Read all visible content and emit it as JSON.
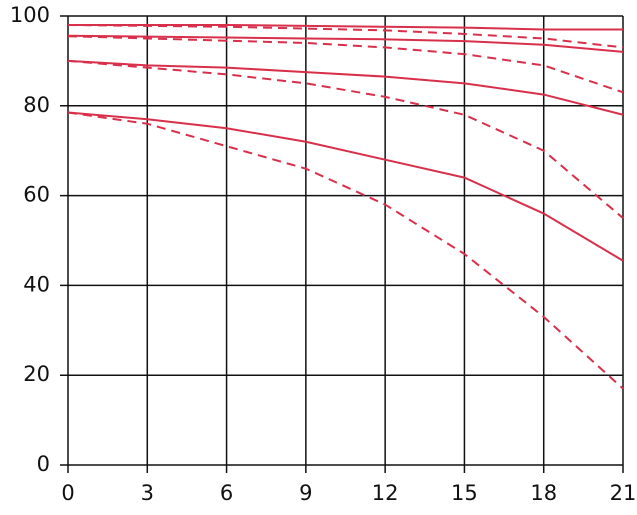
{
  "chart_data": {
    "type": "line",
    "x": [
      0,
      3,
      6,
      9,
      12,
      15,
      18,
      21
    ],
    "series": [
      {
        "color": "#d8304a",
        "style": "solid",
        "values": [
          98,
          98,
          98,
          97.8,
          97.6,
          97.4,
          97,
          97
        ]
      },
      {
        "color": "#d8304a",
        "style": "dashed",
        "values": [
          98,
          97.8,
          97.6,
          97.2,
          96.8,
          96,
          95,
          93
        ]
      },
      {
        "color": "#d8304a",
        "style": "solid",
        "values": [
          95.6,
          95.4,
          95.2,
          95,
          94.8,
          94.4,
          93.6,
          92
        ]
      },
      {
        "color": "#d8304a",
        "style": "dashed",
        "values": [
          95.5,
          95,
          94.5,
          94,
          93,
          91.5,
          89,
          83
        ]
      },
      {
        "color": "#d8304a",
        "style": "solid",
        "values": [
          90,
          89,
          88.5,
          87.5,
          86.5,
          85,
          82.5,
          78
        ]
      },
      {
        "color": "#d8304a",
        "style": "dashed",
        "values": [
          90,
          88.5,
          87,
          85,
          82,
          78,
          70,
          55
        ]
      },
      {
        "color": "#d8304a",
        "style": "solid",
        "values": [
          78.5,
          77,
          75,
          72,
          68,
          64,
          56,
          45.5
        ]
      },
      {
        "color": "#d8304a",
        "style": "dashed",
        "values": [
          78.5,
          76,
          71,
          66,
          58,
          47,
          33,
          17
        ]
      }
    ],
    "xlim": [
      0,
      21
    ],
    "xticks": [
      0,
      3,
      6,
      9,
      12,
      15,
      18,
      21
    ],
    "ylim": [
      0,
      100
    ],
    "yticks": [
      0,
      20,
      40,
      60,
      80,
      100
    ],
    "grid": true
  }
}
